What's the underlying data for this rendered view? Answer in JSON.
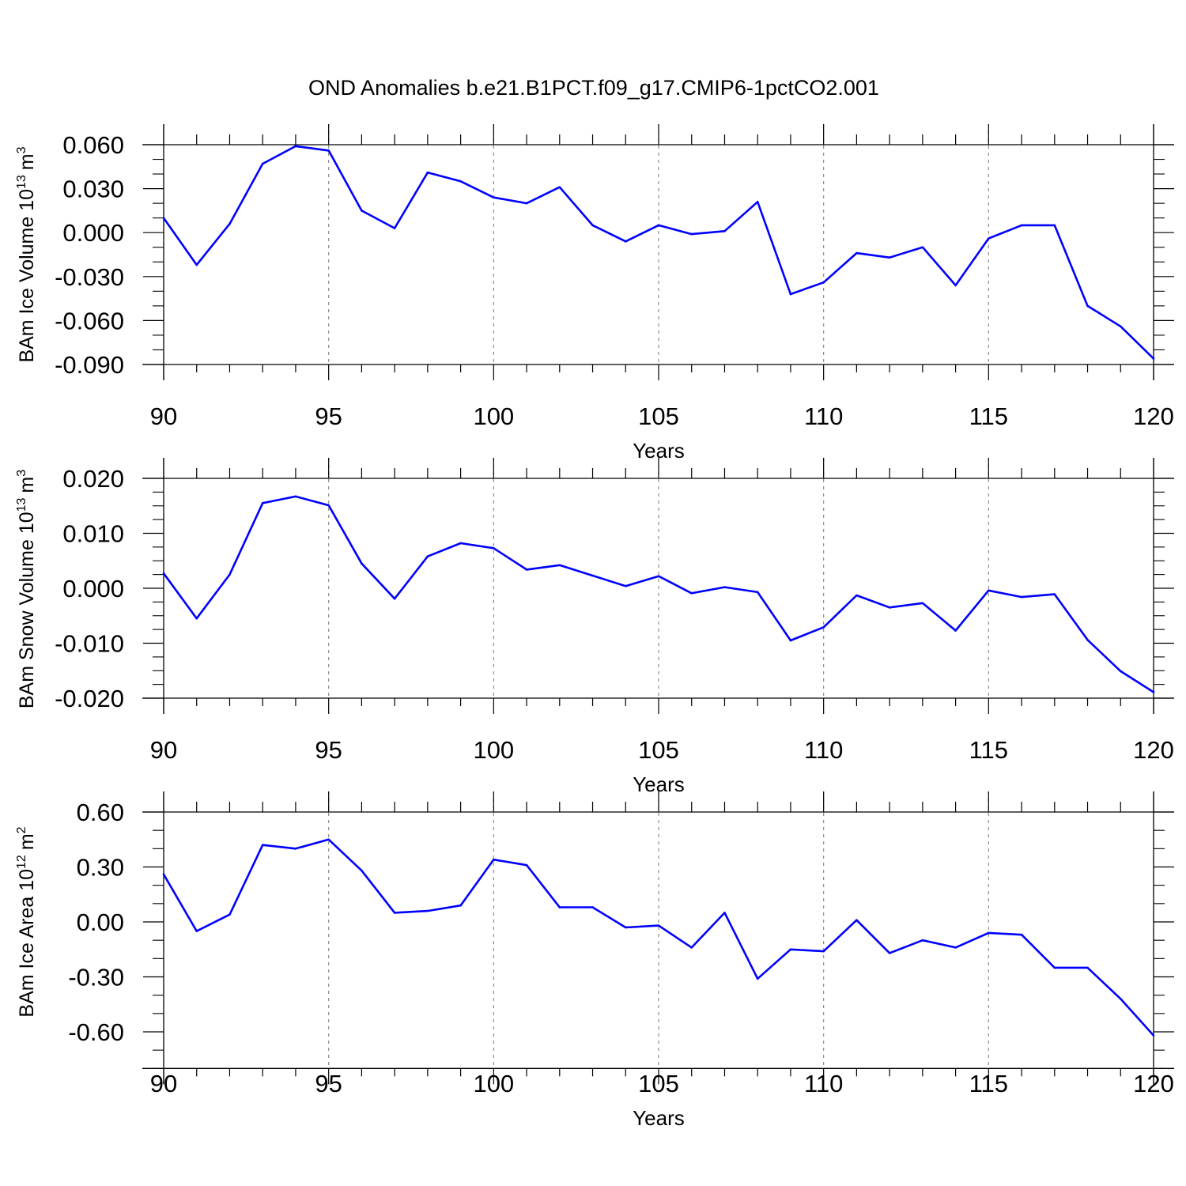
{
  "title": "OND Anomalies b.e21.B1PCT.f09_g17.CMIP6-1pctCO2.001",
  "chart_data": [
    {
      "type": "line",
      "ylabel": {
        "main": "BAm Ice Volume 10",
        "exp": "13",
        "unit": "m",
        "unit_exp": "3"
      },
      "xlabel": "Years",
      "xlim": [
        90,
        120
      ],
      "ylim": [
        -0.09,
        0.06
      ],
      "x_ticks": [
        90,
        95,
        100,
        105,
        110,
        115,
        120
      ],
      "x_tick_labels": [
        "90",
        "95",
        "100",
        "105",
        "110",
        "115",
        "120"
      ],
      "y_ticks": [
        -0.09,
        -0.06,
        -0.03,
        0.0,
        0.03,
        0.06
      ],
      "y_tick_labels": [
        "-0.090",
        "-0.060",
        "-0.030",
        "0.000",
        "0.030",
        "0.060"
      ],
      "y_minor_step": 0.01,
      "color": "#0000ff",
      "x": [
        90,
        91,
        92,
        93,
        94,
        95,
        96,
        97,
        98,
        99,
        100,
        101,
        102,
        103,
        104,
        105,
        106,
        107,
        108,
        109,
        110,
        111,
        112,
        113,
        114,
        115,
        116,
        117,
        118,
        119,
        120
      ],
      "y": [
        0.01,
        -0.022,
        0.006,
        0.047,
        0.059,
        0.056,
        0.015,
        0.003,
        0.041,
        0.035,
        0.024,
        0.02,
        0.031,
        0.005,
        -0.006,
        0.005,
        -0.001,
        0.001,
        0.021,
        -0.042,
        -0.034,
        -0.014,
        -0.017,
        -0.01,
        -0.036,
        -0.004,
        0.005,
        0.005,
        -0.05,
        -0.064,
        -0.086
      ]
    },
    {
      "type": "line",
      "ylabel": {
        "main": "BAm Snow Volume 10",
        "exp": "13",
        "unit": "m",
        "unit_exp": "3"
      },
      "xlabel": "Years",
      "xlim": [
        90,
        120
      ],
      "ylim": [
        -0.02,
        0.02
      ],
      "x_ticks": [
        90,
        95,
        100,
        105,
        110,
        115,
        120
      ],
      "x_tick_labels": [
        "90",
        "95",
        "100",
        "105",
        "110",
        "115",
        "120"
      ],
      "y_ticks": [
        -0.02,
        -0.01,
        0.0,
        0.01,
        0.02
      ],
      "y_tick_labels": [
        "-0.020",
        "-0.010",
        "0.000",
        "0.010",
        "0.020"
      ],
      "y_minor_step": 0.0025,
      "color": "#0000ff",
      "x": [
        90,
        91,
        92,
        93,
        94,
        95,
        96,
        97,
        98,
        99,
        100,
        101,
        102,
        103,
        104,
        105,
        106,
        107,
        108,
        109,
        110,
        111,
        112,
        113,
        114,
        115,
        116,
        117,
        118,
        119,
        120
      ],
      "y": [
        0.0027,
        -0.0055,
        0.0025,
        0.0155,
        0.0167,
        0.0151,
        0.0045,
        -0.0019,
        0.0058,
        0.0082,
        0.0073,
        0.0034,
        0.0042,
        0.0023,
        0.0004,
        0.0022,
        -0.0009,
        0.0002,
        -0.0007,
        -0.0095,
        -0.0071,
        -0.0013,
        -0.0035,
        -0.0027,
        -0.0077,
        -0.0004,
        -0.0016,
        -0.0011,
        -0.0094,
        -0.0151,
        -0.0189
      ]
    },
    {
      "type": "line",
      "ylabel": {
        "main": "BAm Ice Area 10",
        "exp": "12",
        "unit": "m",
        "unit_exp": "2"
      },
      "xlabel": "Years",
      "xlim": [
        90,
        120
      ],
      "ylim": [
        -0.8,
        0.6
      ],
      "x_ticks": [
        90,
        95,
        100,
        105,
        110,
        115,
        120
      ],
      "x_tick_labels": [
        "90",
        "95",
        "100",
        "105",
        "110",
        "115",
        "120"
      ],
      "y_ticks": [
        -0.6,
        -0.3,
        0.0,
        0.3,
        0.6
      ],
      "y_tick_labels": [
        "-0.60",
        "-0.30",
        "0.00",
        "0.30",
        "0.60"
      ],
      "y_minor_step": 0.1,
      "color": "#0000ff",
      "x": [
        90,
        91,
        92,
        93,
        94,
        95,
        96,
        97,
        98,
        99,
        100,
        101,
        102,
        103,
        104,
        105,
        106,
        107,
        108,
        109,
        110,
        111,
        112,
        113,
        114,
        115,
        116,
        117,
        118,
        119,
        120
      ],
      "y": [
        0.26,
        -0.05,
        0.04,
        0.42,
        0.4,
        0.45,
        0.28,
        0.05,
        0.06,
        0.09,
        0.34,
        0.31,
        0.08,
        0.08,
        -0.03,
        -0.02,
        -0.14,
        0.05,
        -0.31,
        -0.15,
        -0.16,
        0.01,
        -0.17,
        -0.1,
        -0.14,
        -0.06,
        -0.07,
        -0.25,
        -0.25,
        -0.42,
        -0.62
      ]
    }
  ]
}
